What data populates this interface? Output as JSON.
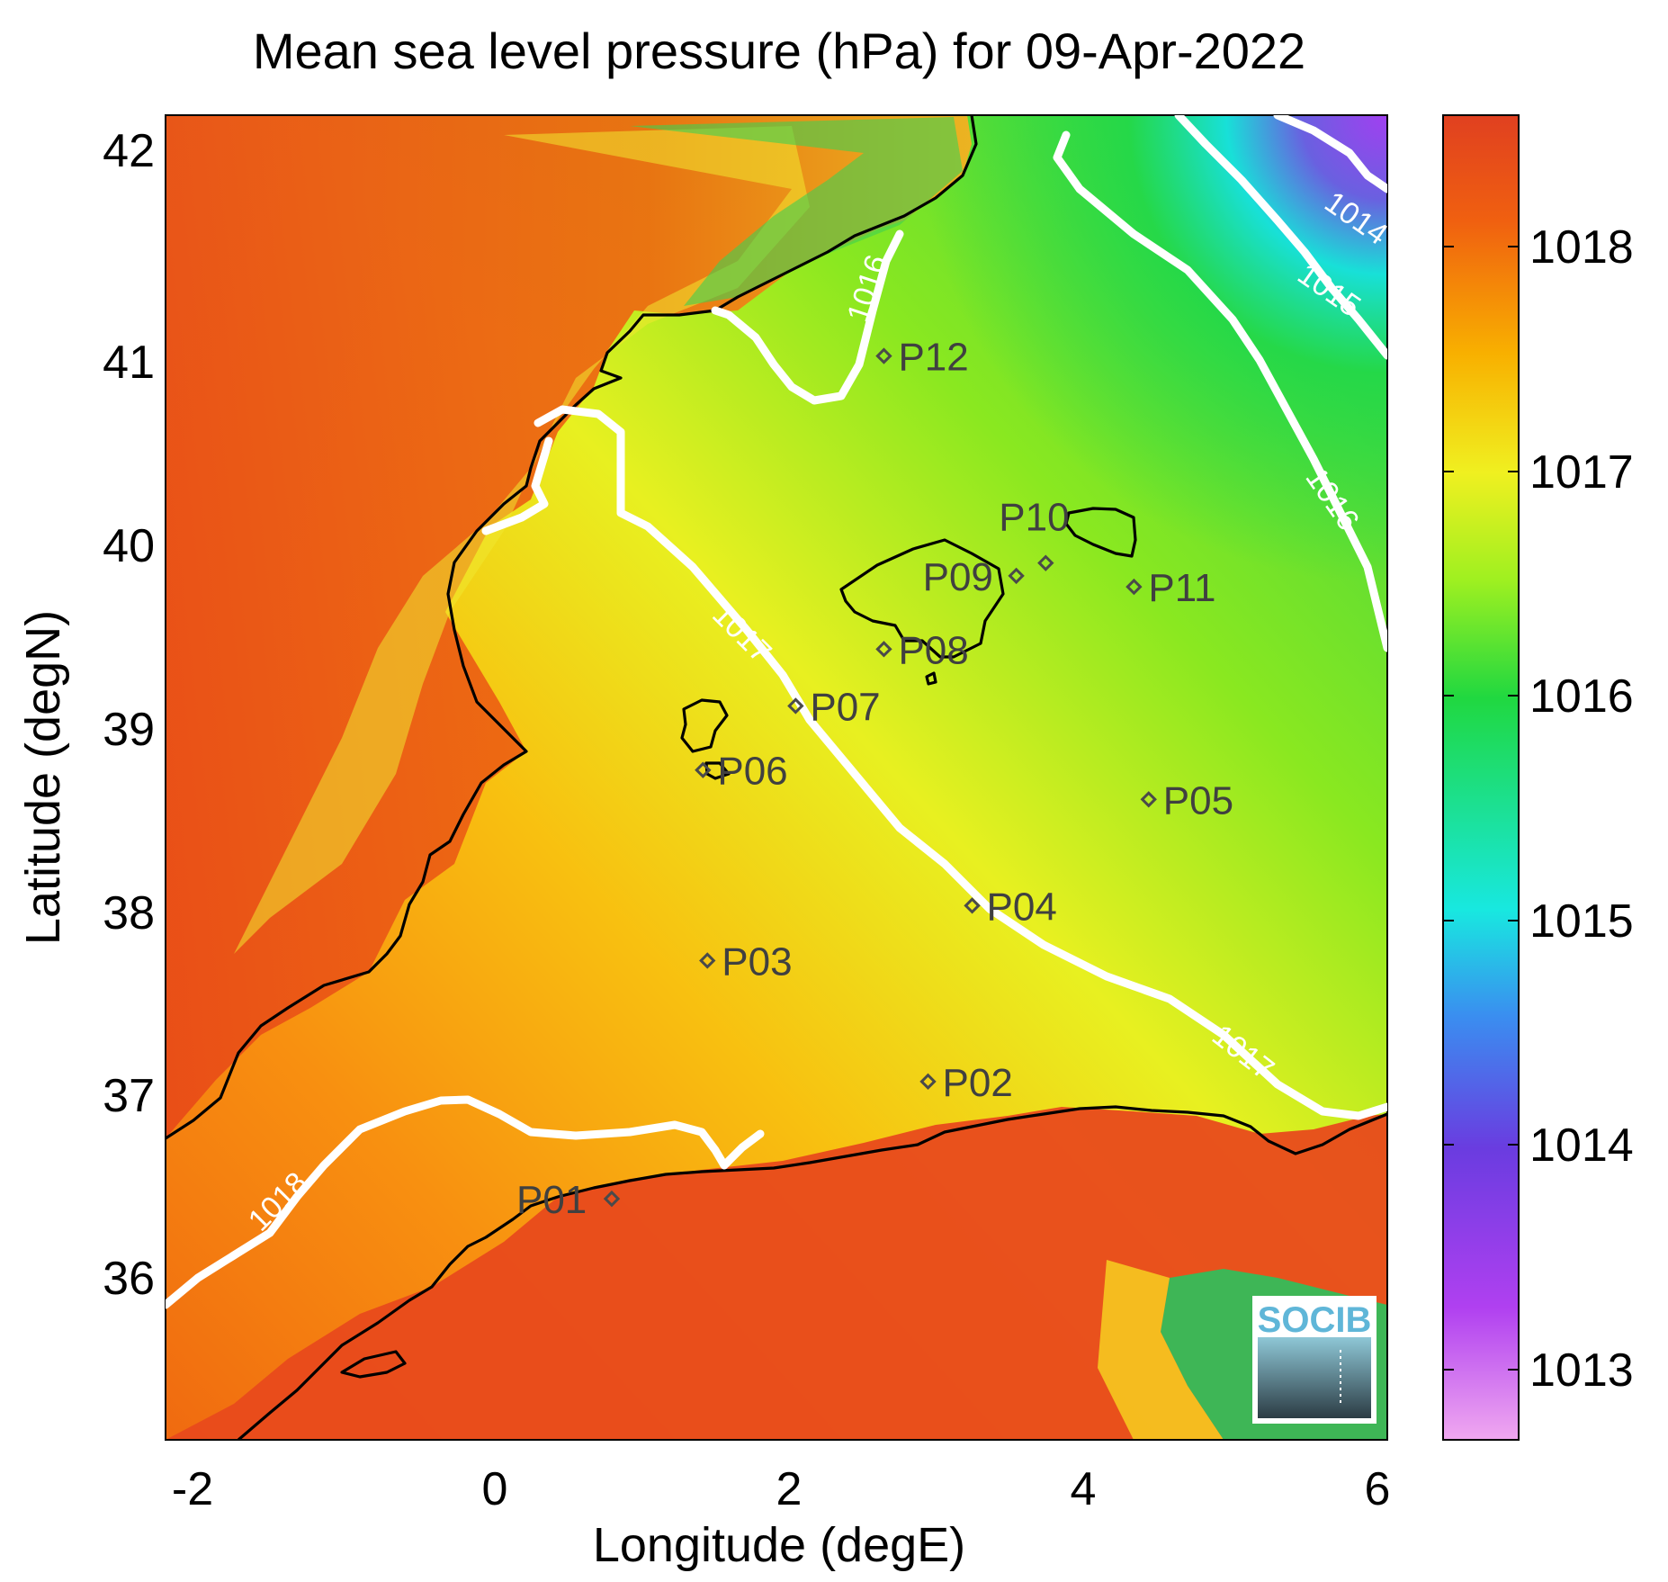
{
  "title": "Mean sea level pressure (hPa) for 09-Apr-2022",
  "chart_data": {
    "type": "heatmap",
    "xlabel": "Longitude (degE)",
    "ylabel": "Latitude (degN)",
    "xlim": [
      -2.2,
      6.1
    ],
    "ylim": [
      35.15,
      42.2
    ],
    "xticks": [
      "-2",
      "0",
      "2",
      "4",
      "6"
    ],
    "yticks": [
      "36",
      "37",
      "38",
      "39",
      "40",
      "41",
      "42"
    ],
    "colorbar": {
      "range": [
        1012.65,
        1018.55
      ],
      "ticks": [
        "1013",
        "1014",
        "1015",
        "1016",
        "1017",
        "1018"
      ],
      "colormap": [
        "#f0a8f0",
        "#b040f0",
        "#6a3ce0",
        "#3a8ef0",
        "#18e8e0",
        "#20d840",
        "#a0f020",
        "#f0f020",
        "#f8b000",
        "#f06010",
        "#e04020"
      ]
    },
    "contour_labels": [
      "1014",
      "1015",
      "1016",
      "1016",
      "1017",
      "1017",
      "1018"
    ],
    "points": [
      {
        "name": "P01",
        "lon": 0.85,
        "lat": 36.52
      },
      {
        "name": "P02",
        "lon": 3.0,
        "lat": 37.16
      },
      {
        "name": "P03",
        "lon": 1.5,
        "lat": 37.82
      },
      {
        "name": "P04",
        "lon": 3.3,
        "lat": 38.12
      },
      {
        "name": "P05",
        "lon": 4.5,
        "lat": 38.7
      },
      {
        "name": "P06",
        "lon": 1.47,
        "lat": 38.86
      },
      {
        "name": "P07",
        "lon": 2.1,
        "lat": 39.21
      },
      {
        "name": "P08",
        "lon": 2.7,
        "lat": 39.52
      },
      {
        "name": "P09",
        "lon": 3.6,
        "lat": 39.92
      },
      {
        "name": "P10",
        "lon": 3.8,
        "lat": 39.99
      },
      {
        "name": "P11",
        "lon": 4.4,
        "lat": 39.86
      },
      {
        "name": "P12",
        "lon": 2.7,
        "lat": 41.12
      }
    ]
  },
  "logo": {
    "text": "SOCIB"
  }
}
